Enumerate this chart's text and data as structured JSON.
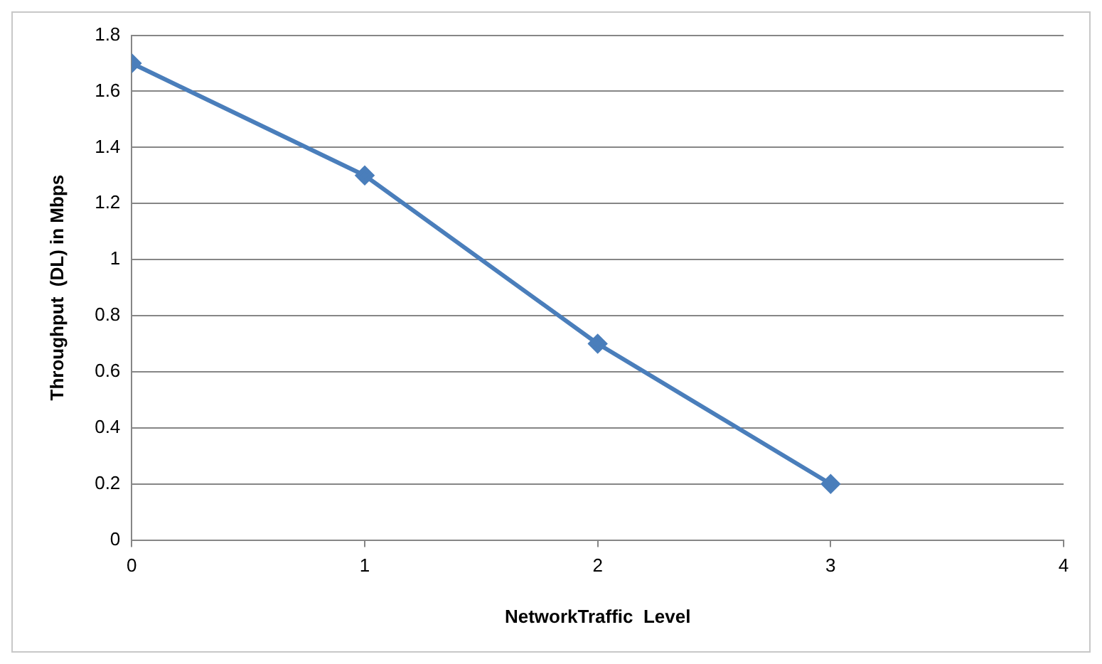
{
  "chart_data": {
    "type": "line",
    "xlabel": "NetworkTraffic  Level",
    "ylabel": "Throughput  (DL) in Mbps",
    "x": [
      0,
      1,
      2,
      3
    ],
    "series": [
      {
        "color": "#4a7ebb",
        "values": [
          1.7,
          1.3,
          0.7,
          0.2
        ]
      }
    ],
    "xlim": [
      0,
      4
    ],
    "xticks": [
      0,
      1,
      2,
      3,
      4
    ],
    "ylim": [
      0,
      1.8
    ],
    "yticks": [
      0,
      0.2,
      0.4,
      0.6,
      0.8,
      1,
      1.2,
      1.4,
      1.6,
      1.8
    ],
    "grid": "y",
    "legend": false,
    "marker": "diamond",
    "line_style": "solid"
  }
}
